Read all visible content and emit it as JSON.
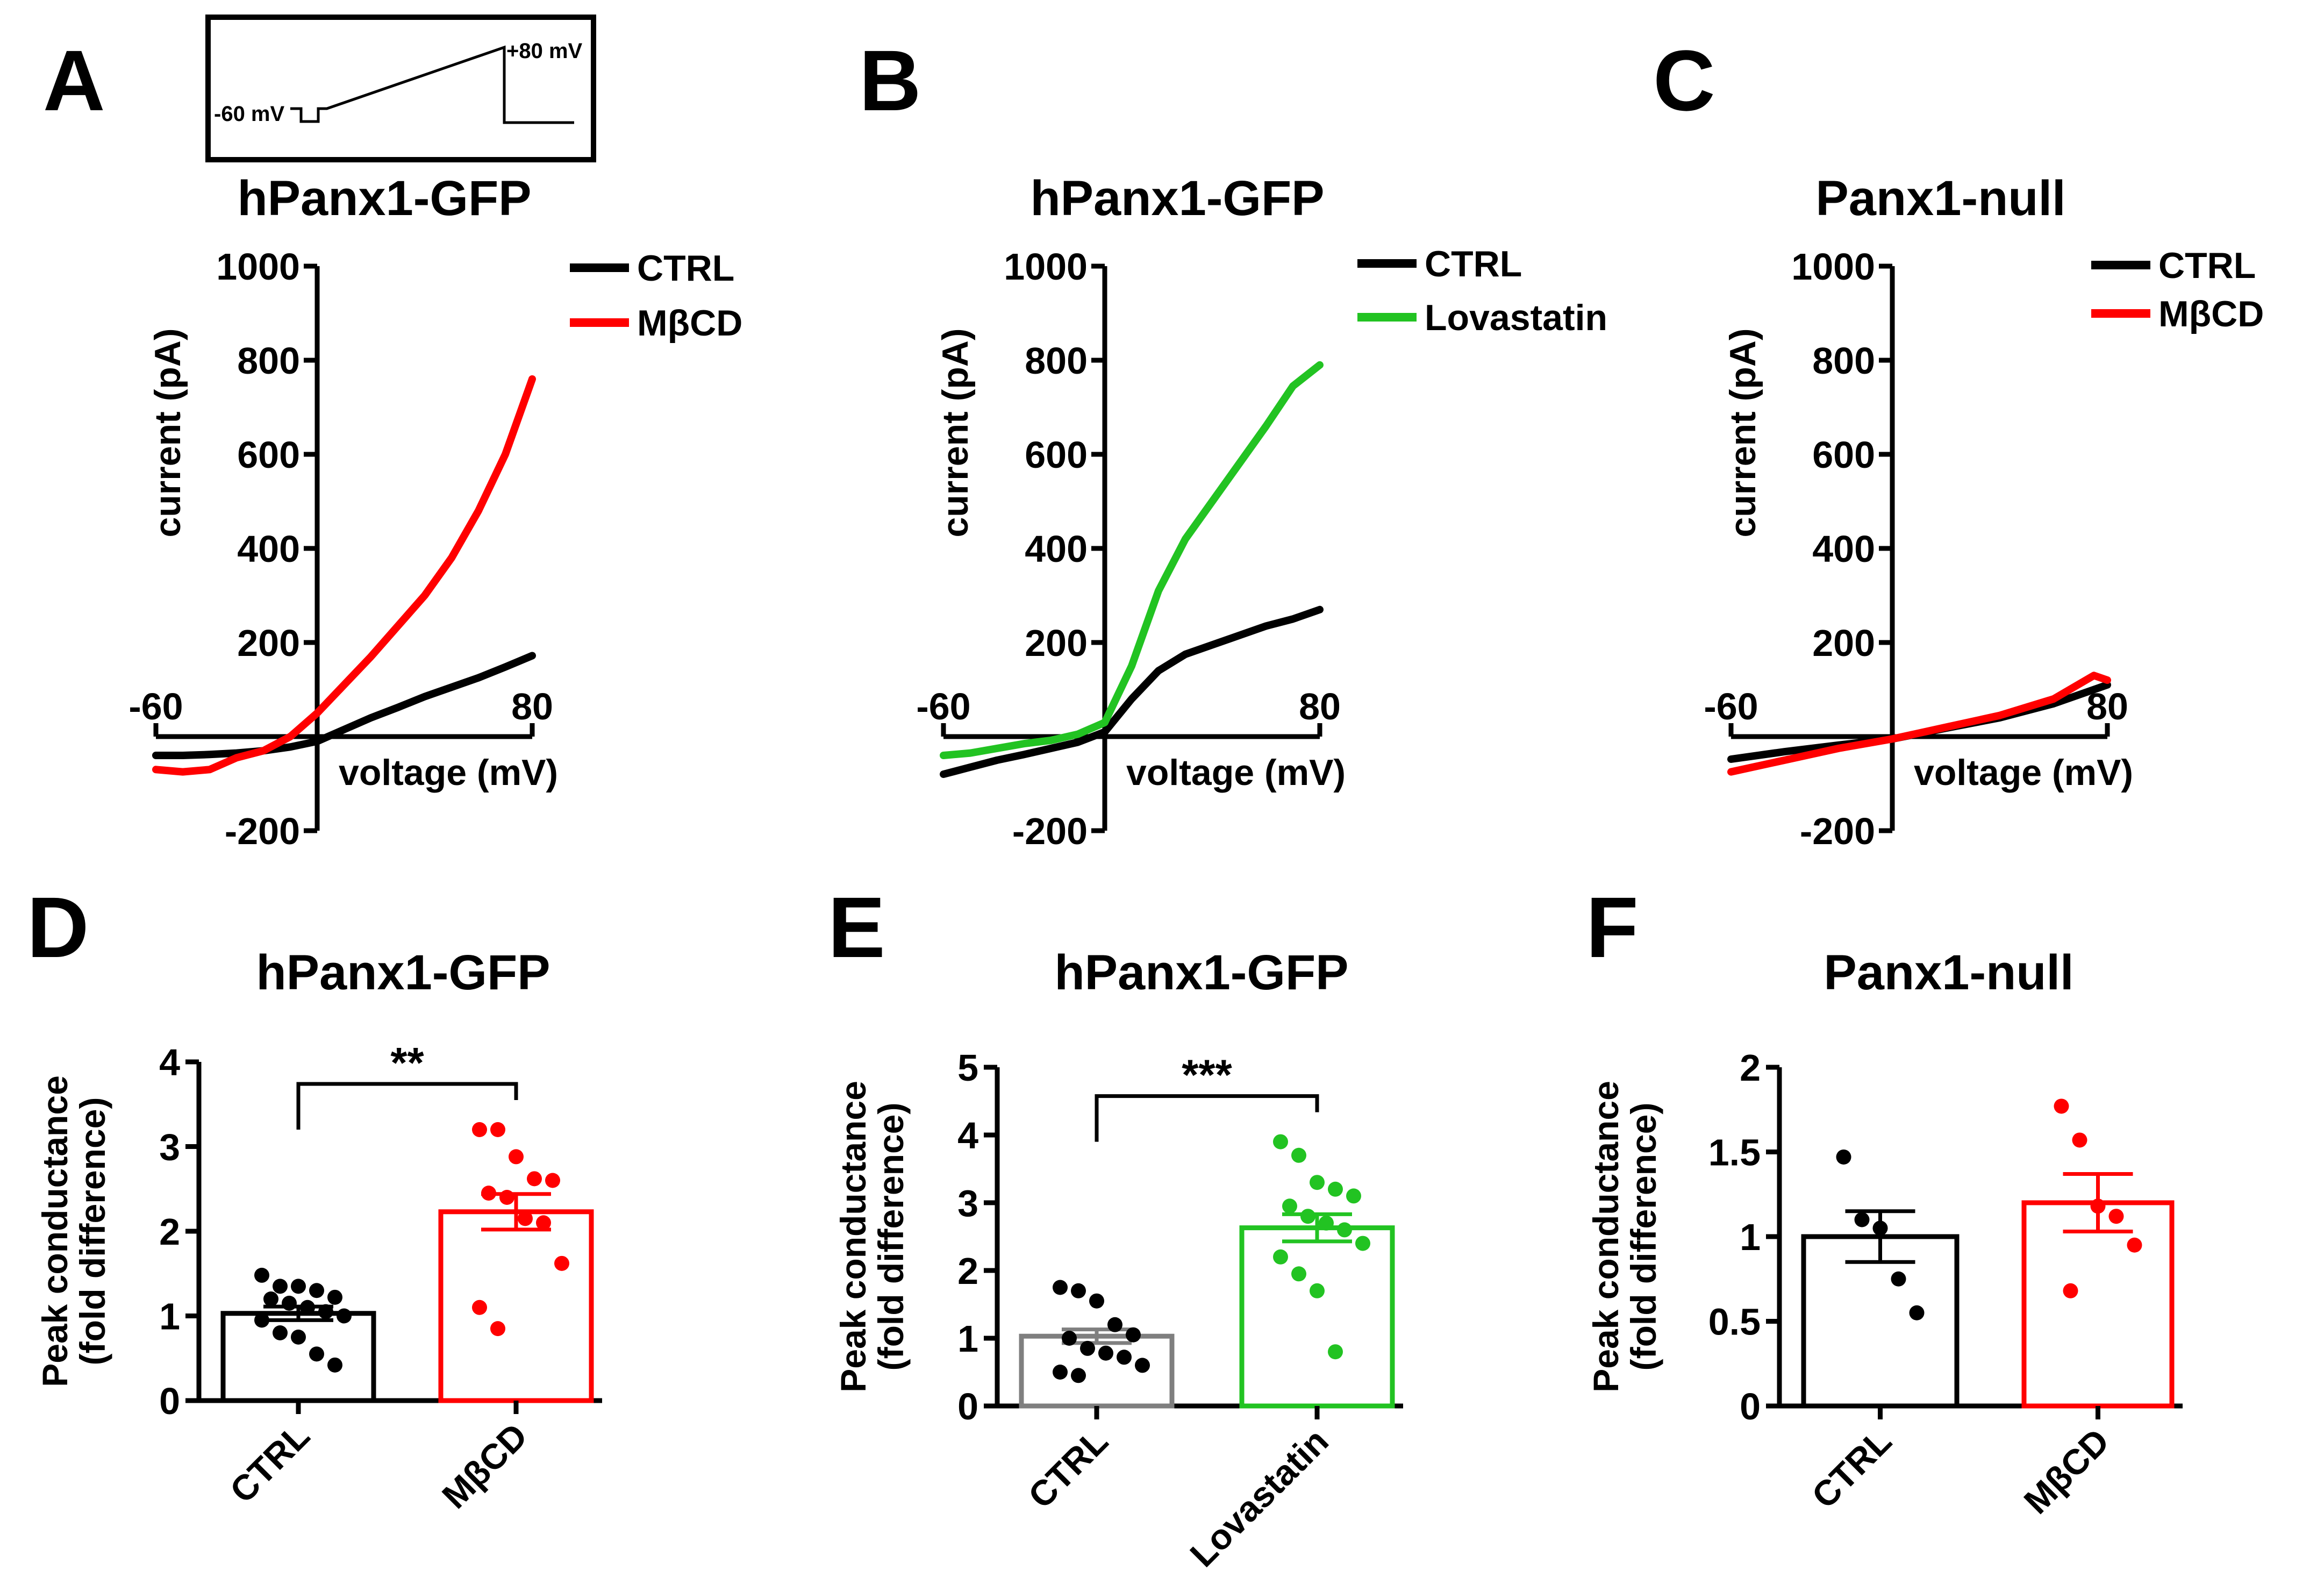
{
  "figure": {
    "protocol_inset": {
      "start_label": "-60 mV",
      "end_label": "+80 mV"
    },
    "colors": {
      "ctrl": "#000000",
      "mbcd": "#ff0000",
      "lovastatin": "#22c322",
      "ctrl_bar_e": "#7f7f7f"
    }
  },
  "chart_data": [
    {
      "panel": "A",
      "type": "line",
      "title": "hPanx1-GFP",
      "xlabel": "voltage (mV)",
      "ylabel": "current (pA)",
      "xlim": [
        -60,
        80
      ],
      "ylim": [
        -200,
        1000
      ],
      "yticks": [
        -200,
        200,
        400,
        600,
        800,
        1000
      ],
      "ytick_labels": [
        "-200",
        "200",
        "400",
        "600",
        "800",
        "1000"
      ],
      "xtick_labels": [
        "-60",
        "80"
      ],
      "legend": [
        "CTRL",
        "MβCD"
      ],
      "series": [
        {
          "name": "CTRL",
          "color": "#000000",
          "points": [
            [
              -60,
              -40
            ],
            [
              -50,
              -40
            ],
            [
              -40,
              -38
            ],
            [
              -30,
              -35
            ],
            [
              -20,
              -30
            ],
            [
              -10,
              -22
            ],
            [
              0,
              -10
            ],
            [
              10,
              15
            ],
            [
              20,
              40
            ],
            [
              30,
              62
            ],
            [
              40,
              85
            ],
            [
              50,
              105
            ],
            [
              60,
              125
            ],
            [
              70,
              148
            ],
            [
              80,
              172
            ]
          ]
        },
        {
          "name": "MβCD",
          "color": "#ff0000",
          "points": [
            [
              -60,
              -70
            ],
            [
              -50,
              -75
            ],
            [
              -40,
              -70
            ],
            [
              -30,
              -45
            ],
            [
              -20,
              -30
            ],
            [
              -10,
              0
            ],
            [
              0,
              50
            ],
            [
              10,
              110
            ],
            [
              20,
              170
            ],
            [
              30,
              235
            ],
            [
              40,
              300
            ],
            [
              50,
              380
            ],
            [
              60,
              480
            ],
            [
              70,
              600
            ],
            [
              80,
              760
            ]
          ]
        }
      ]
    },
    {
      "panel": "B",
      "type": "line",
      "title": "hPanx1-GFP",
      "xlabel": "voltage (mV)",
      "ylabel": "current (pA)",
      "xlim": [
        -60,
        80
      ],
      "ylim": [
        -200,
        1000
      ],
      "yticks": [
        -200,
        200,
        400,
        600,
        800,
        1000
      ],
      "ytick_labels": [
        "-200",
        "200",
        "400",
        "600",
        "800",
        "1000"
      ],
      "xtick_labels": [
        "-60",
        "80"
      ],
      "legend": [
        "CTRL",
        "Lovastatin"
      ],
      "series": [
        {
          "name": "CTRL",
          "color": "#000000",
          "points": [
            [
              -60,
              -80
            ],
            [
              -50,
              -65
            ],
            [
              -40,
              -50
            ],
            [
              -30,
              -38
            ],
            [
              -20,
              -25
            ],
            [
              -10,
              -12
            ],
            [
              0,
              10
            ],
            [
              10,
              80
            ],
            [
              20,
              140
            ],
            [
              30,
              175
            ],
            [
              40,
              195
            ],
            [
              50,
              215
            ],
            [
              60,
              235
            ],
            [
              70,
              250
            ],
            [
              80,
              270
            ]
          ]
        },
        {
          "name": "Lovastatin",
          "color": "#22c322",
          "points": [
            [
              -60,
              -40
            ],
            [
              -50,
              -35
            ],
            [
              -40,
              -25
            ],
            [
              -30,
              -15
            ],
            [
              -20,
              -8
            ],
            [
              -10,
              5
            ],
            [
              0,
              30
            ],
            [
              10,
              150
            ],
            [
              20,
              310
            ],
            [
              30,
              420
            ],
            [
              40,
              500
            ],
            [
              50,
              580
            ],
            [
              60,
              660
            ],
            [
              70,
              745
            ],
            [
              80,
              790
            ]
          ]
        }
      ]
    },
    {
      "panel": "C",
      "type": "line",
      "title": "Panx1-null",
      "xlabel": "voltage (mV)",
      "ylabel": "current (pA)",
      "xlim": [
        -60,
        80
      ],
      "ylim": [
        -200,
        1000
      ],
      "yticks": [
        -200,
        200,
        400,
        600,
        800,
        1000
      ],
      "ytick_labels": [
        "-200",
        "200",
        "400",
        "600",
        "800",
        "1000"
      ],
      "xtick_labels": [
        "-60",
        "80"
      ],
      "legend": [
        "CTRL",
        "MβCD"
      ],
      "series": [
        {
          "name": "CTRL",
          "color": "#000000",
          "points": [
            [
              -60,
              -48
            ],
            [
              -40,
              -32
            ],
            [
              -20,
              -18
            ],
            [
              0,
              -5
            ],
            [
              20,
              18
            ],
            [
              40,
              40
            ],
            [
              60,
              70
            ],
            [
              80,
              110
            ]
          ]
        },
        {
          "name": "MβCD",
          "color": "#ff0000",
          "points": [
            [
              -60,
              -75
            ],
            [
              -40,
              -50
            ],
            [
              -20,
              -25
            ],
            [
              0,
              -5
            ],
            [
              20,
              20
            ],
            [
              40,
              45
            ],
            [
              60,
              80
            ],
            [
              75,
              130
            ],
            [
              80,
              120
            ]
          ]
        }
      ]
    },
    {
      "panel": "D",
      "type": "bar",
      "title": "hPanx1-GFP",
      "ylabel_lines": [
        "Peak conductance",
        "(fold difference)"
      ],
      "ylim": [
        0,
        4
      ],
      "yticks": [
        0,
        1,
        2,
        3,
        4
      ],
      "ytick_labels": [
        "0",
        "1",
        "2",
        "3",
        "4"
      ],
      "categories": [
        "CTRL",
        "MβCD"
      ],
      "values": [
        1.03,
        2.23
      ],
      "sem": [
        0.08,
        0.21
      ],
      "bar_colors": [
        "#000000",
        "#ff0000"
      ],
      "points": [
        [
          1.48,
          1.35,
          1.35,
          1.3,
          1.22,
          1.2,
          1.15,
          1.1,
          1.05,
          1.0,
          0.95,
          0.8,
          0.75,
          0.55,
          0.42
        ],
        [
          3.2,
          3.2,
          2.88,
          2.62,
          2.6,
          2.45,
          2.4,
          2.15,
          2.1,
          1.62,
          1.1,
          0.85
        ]
      ],
      "significance": "**"
    },
    {
      "panel": "E",
      "type": "bar",
      "title": "hPanx1-GFP",
      "ylabel_lines": [
        "Peak conductance",
        "(fold difference)"
      ],
      "ylim": [
        0,
        5
      ],
      "yticks": [
        0,
        1,
        2,
        3,
        4,
        5
      ],
      "ytick_labels": [
        "0",
        "1",
        "2",
        "3",
        "4",
        "5"
      ],
      "categories": [
        "CTRL",
        "Lovastatin"
      ],
      "values": [
        1.03,
        2.63
      ],
      "sem": [
        0.1,
        0.2
      ],
      "bar_colors": [
        "#7f7f7f",
        "#22c322"
      ],
      "points": [
        [
          1.75,
          1.7,
          1.55,
          1.2,
          1.05,
          1.0,
          0.85,
          0.78,
          0.72,
          0.6,
          0.5,
          0.45
        ],
        [
          3.9,
          3.7,
          3.3,
          3.2,
          3.1,
          2.95,
          2.8,
          2.7,
          2.6,
          2.4,
          2.2,
          1.95,
          1.7,
          0.8
        ]
      ],
      "significance": "***"
    },
    {
      "panel": "F",
      "type": "bar",
      "title": "Panx1-null",
      "ylabel_lines": [
        "Peak conductance",
        "(fold difference)"
      ],
      "ylim": [
        0,
        2
      ],
      "yticks": [
        0,
        0.5,
        1,
        1.5,
        2
      ],
      "ytick_labels": [
        "0",
        "0.5",
        "1",
        "1.5",
        "2"
      ],
      "categories": [
        "CTRL",
        "MβCD"
      ],
      "values": [
        1.0,
        1.2
      ],
      "sem": [
        0.15,
        0.17
      ],
      "bar_colors": [
        "#000000",
        "#ff0000"
      ],
      "points": [
        [
          1.47,
          1.1,
          1.05,
          0.75,
          0.55
        ],
        [
          1.77,
          1.57,
          1.18,
          1.12,
          0.95,
          0.68
        ]
      ],
      "significance": ""
    }
  ]
}
